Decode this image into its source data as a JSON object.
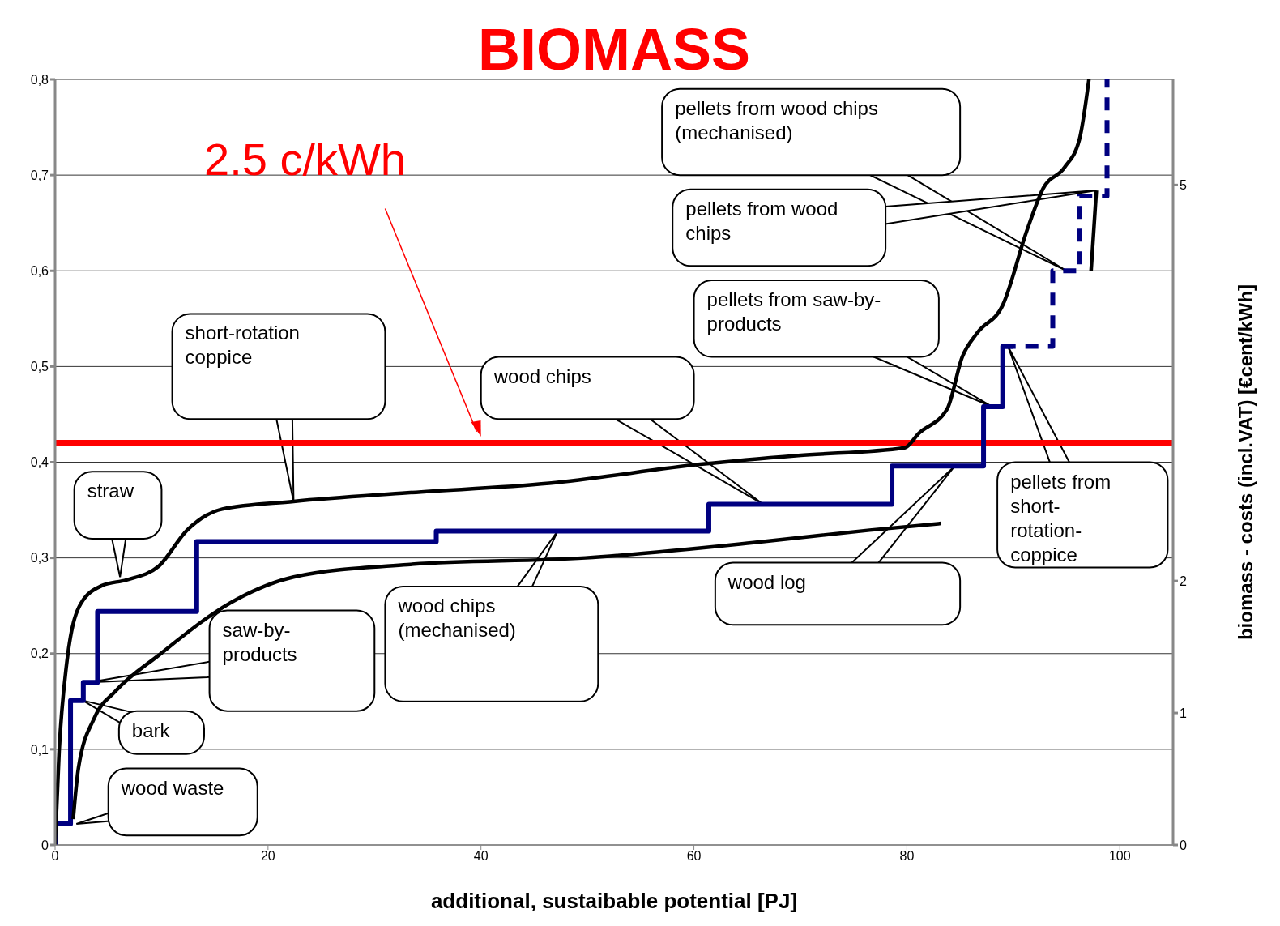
{
  "chart_data": {
    "type": "line",
    "title": "BIOMASS",
    "xlabel": "additional, sustaibable potential [PJ]",
    "y2label": "biomass - costs  (incl.VAT) [€cent/kWh]",
    "xlim": [
      0,
      105
    ],
    "xticks": [
      0,
      20,
      40,
      60,
      80,
      100
    ],
    "ylim": [
      0,
      0.8
    ],
    "yticks": [
      0,
      {
        "value": 0.1,
        "label": "0,1"
      },
      {
        "value": 0.2,
        "label": "0,2"
      },
      {
        "value": 0.3,
        "label": "0,3"
      },
      {
        "value": 0.4,
        "label": "0,4"
      },
      {
        "value": 0.5,
        "label": "0,5"
      },
      {
        "value": 0.6,
        "label": "0,6"
      },
      {
        "value": 0.7,
        "label": "0,7"
      },
      {
        "value": 0.8,
        "label": "0,8"
      }
    ],
    "y2lim": [
      0,
      5.8
    ],
    "y2ticks": [
      0,
      1,
      2,
      5
    ],
    "grid": "y",
    "marker": "none",
    "series": [
      {
        "type": "step",
        "color": "#000080",
        "line_style": "solid",
        "x": [
          0,
          0,
          1.45,
          2.65,
          3.99,
          13.3,
          35.8,
          61.4,
          78.6,
          87.2,
          89.0,
          90.0
        ],
        "values": [
          0,
          0.022,
          0.151,
          0.17,
          0.244,
          0.317,
          0.328,
          0.356,
          0.396,
          0.458,
          0.521,
          0.521
        ]
      },
      {
        "type": "step",
        "color": "#000080",
        "line_style": "dashed",
        "x": [
          89.0,
          93.7,
          96.2,
          98.8
        ],
        "values": [
          0.521,
          0.6,
          0.678,
          0.8
        ]
      },
      {
        "type": "line",
        "color": "#000000",
        "line_style": "solid",
        "x": [
          0,
          0.38,
          1.05,
          2.4,
          4.4,
          6.7,
          9.7,
          12.4,
          15.7,
          22.4,
          33.1,
          46.4,
          60.8,
          69.8,
          79.8,
          81.1,
          83.8,
          85.2,
          86.6,
          89.0,
          91.3,
          92.8,
          94.8,
          96.2,
          97.1
        ],
        "values": [
          0,
          0.098,
          0.186,
          0.252,
          0.271,
          0.277,
          0.291,
          0.329,
          0.351,
          0.359,
          0.368,
          0.378,
          0.398,
          0.407,
          0.415,
          0.43,
          0.456,
          0.51,
          0.535,
          0.564,
          0.643,
          0.686,
          0.708,
          0.737,
          0.8
        ]
      },
      {
        "type": "line",
        "color": "#000000",
        "line_style": "solid",
        "x": [
          1.7,
          2.2,
          3.7,
          5.7,
          9.7,
          17.1,
          22.4,
          33.1,
          49.8,
          66.5,
          76.5,
          83.2,
          90,
          97.3,
          97.8
        ],
        "values": [
          0.027,
          0.081,
          0.133,
          0.161,
          0.198,
          0.257,
          0.28,
          0.293,
          0.3,
          0.317,
          0.329,
          0.336,
          null,
          0.6,
          0.684
        ]
      }
    ],
    "ref_lines": [
      {
        "axis": "y",
        "value": 0.42,
        "label": "2.5 c/kWh",
        "color": "#ff0000"
      }
    ],
    "annotations": [
      {
        "text": "wood waste",
        "x": 2.0,
        "y": 0.022
      },
      {
        "text": "bark",
        "x": 2.6,
        "y": 0.151
      },
      {
        "text": "saw-by-products",
        "x": 3.2,
        "y": 0.17
      },
      {
        "text": "straw",
        "x": 6.1,
        "y": 0.28
      },
      {
        "text": "short-rotation coppice",
        "x": 22.4,
        "y": 0.359
      },
      "wood chips",
      "wood chips (mechanised)",
      "wood log",
      "pellets from saw-by-products",
      "pellets from wood chips (mechanised)",
      {
        "text": "pellets from wood chips",
        "x": 97.8,
        "y": 0.684
      },
      {
        "text": "pellets from short-rotation-coppice",
        "x": 89.5,
        "y": 0.521
      }
    ]
  }
}
